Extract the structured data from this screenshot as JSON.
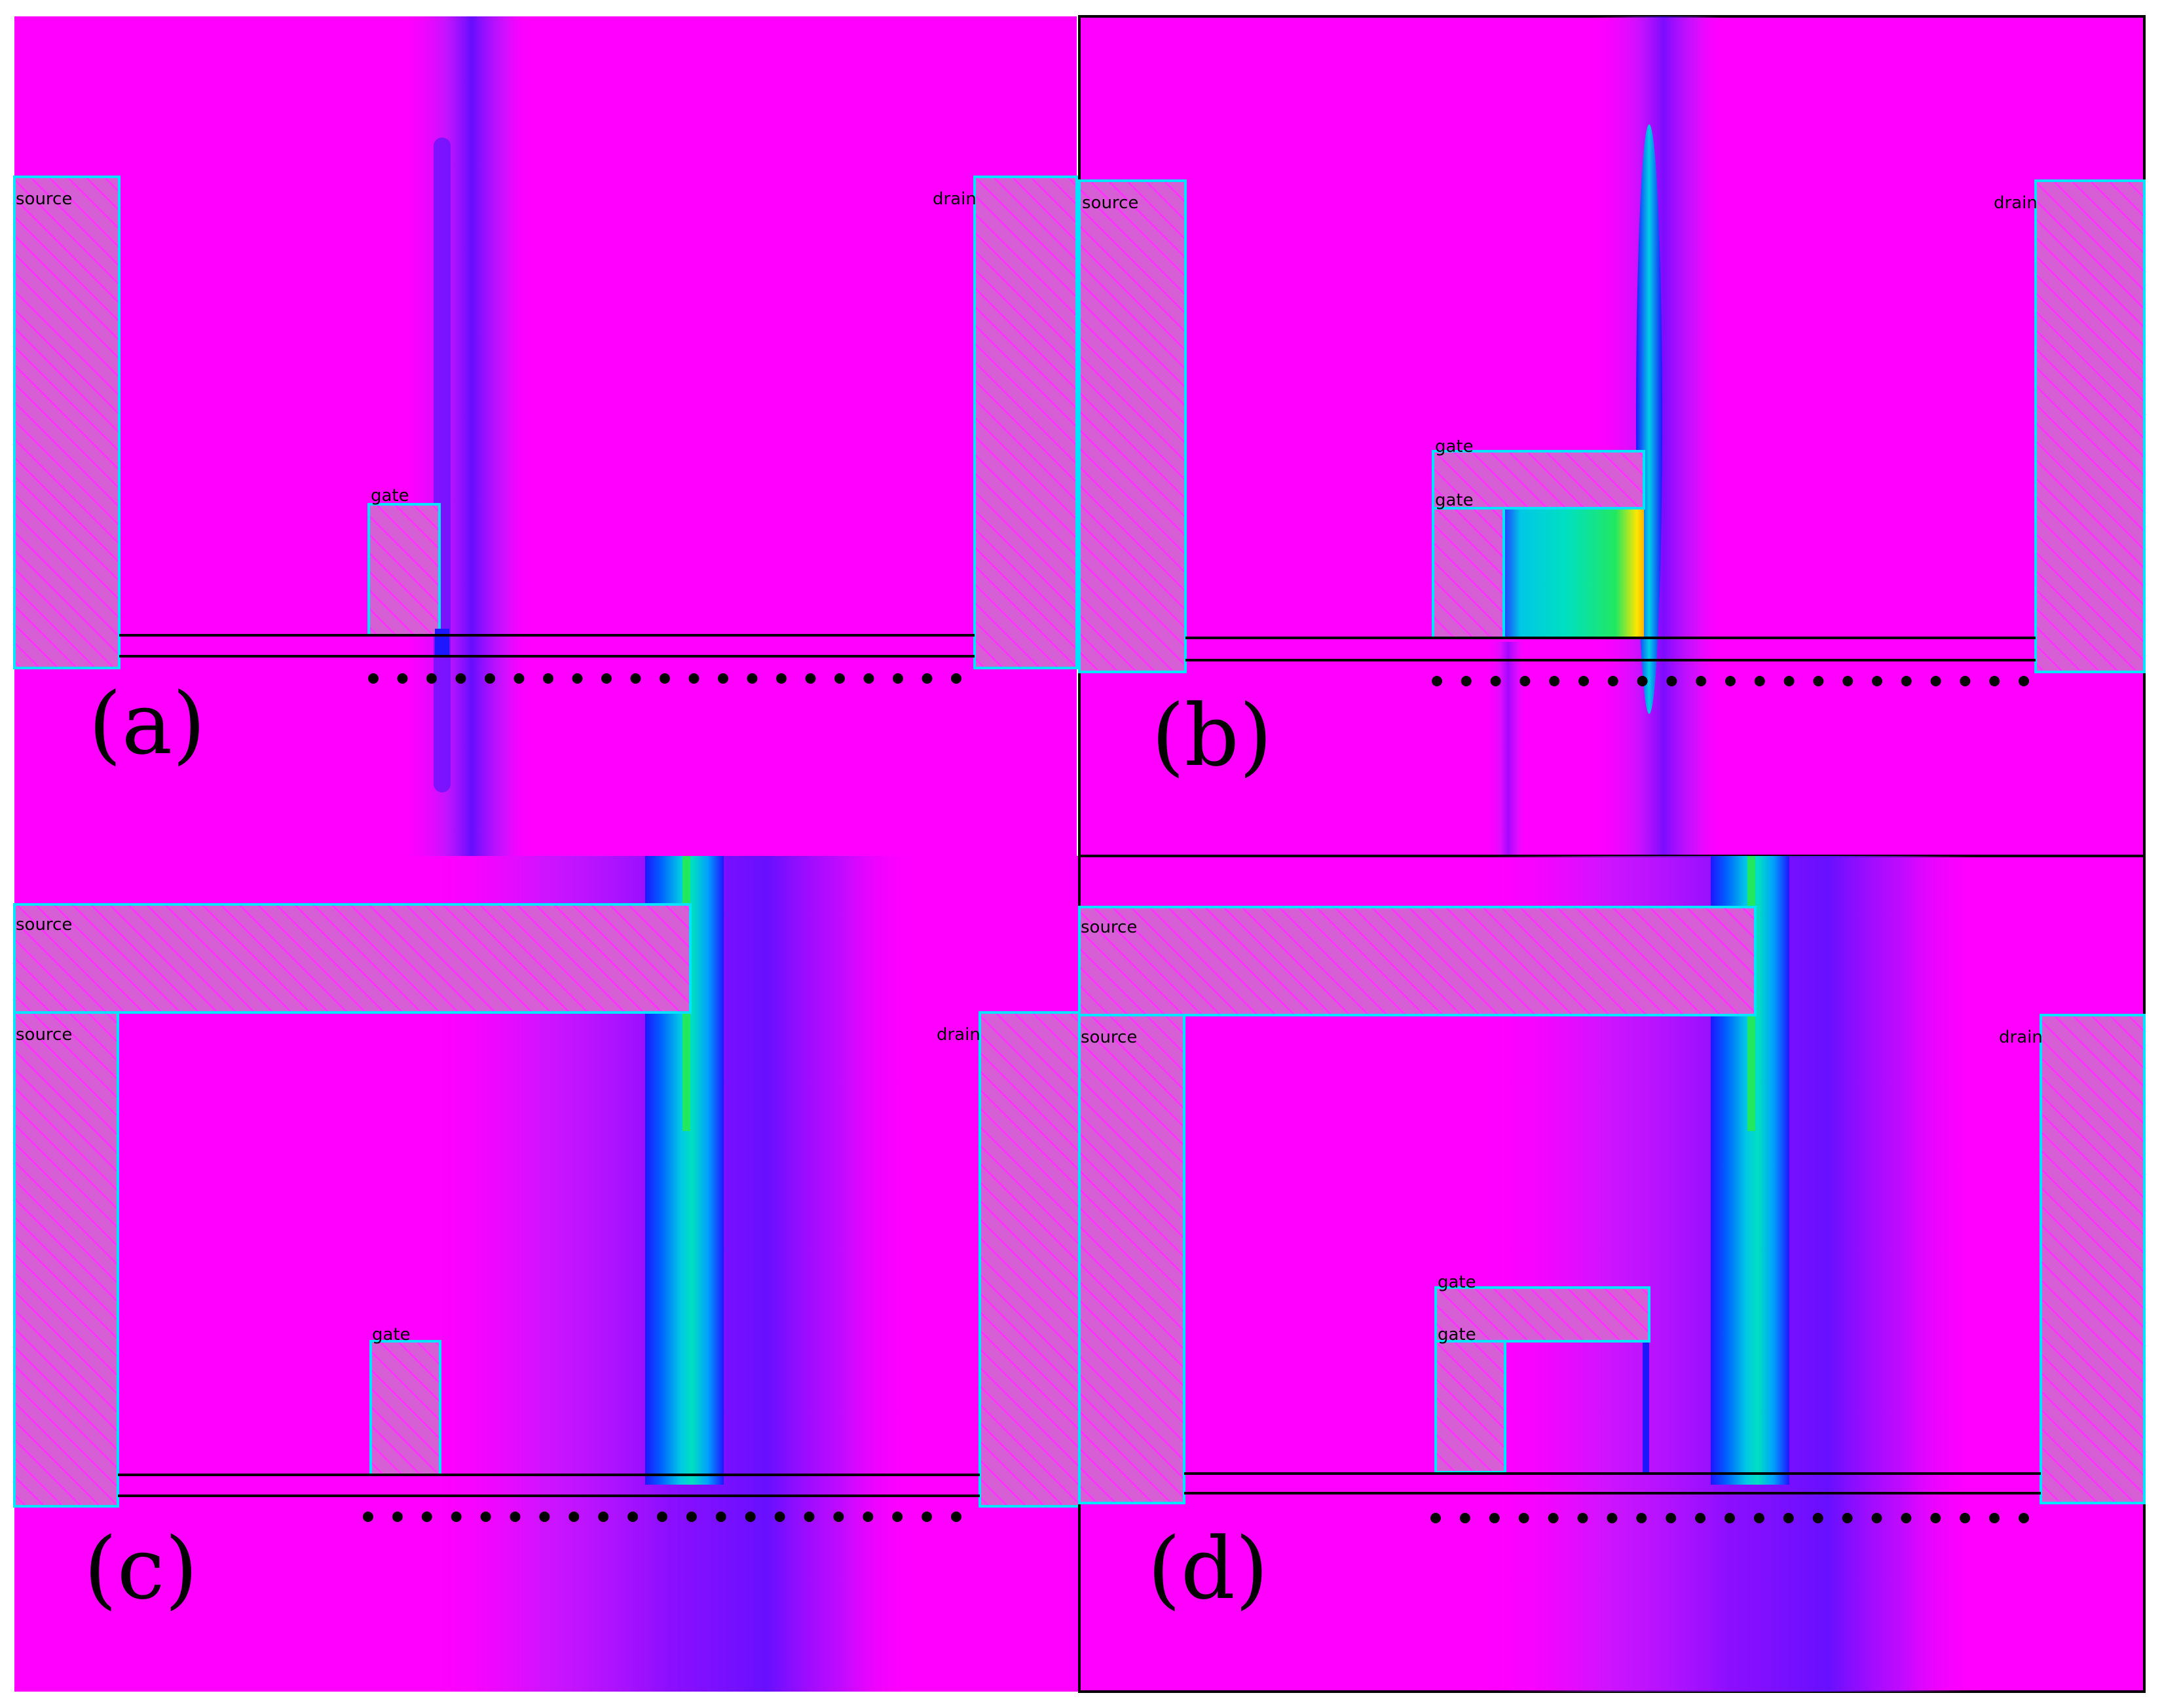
{
  "panels": [
    {
      "id": "a",
      "label": "(a)",
      "electrodes": [
        {
          "id": "source",
          "text": "source"
        },
        {
          "id": "drain",
          "text": "drain"
        },
        {
          "id": "gate",
          "text": "gate"
        }
      ]
    },
    {
      "id": "b",
      "label": "(b)",
      "electrodes": [
        {
          "id": "source",
          "text": "source"
        },
        {
          "id": "drain",
          "text": "drain"
        },
        {
          "id": "gate-top",
          "text": "gate"
        },
        {
          "id": "gate",
          "text": "gate"
        }
      ]
    },
    {
      "id": "c",
      "label": "(c)",
      "electrodes": [
        {
          "id": "source-top",
          "text": "source"
        },
        {
          "id": "source",
          "text": "source"
        },
        {
          "id": "drain",
          "text": "drain"
        },
        {
          "id": "gate",
          "text": "gate"
        }
      ]
    },
    {
      "id": "d",
      "label": "(d)",
      "electrodes": [
        {
          "id": "source-top",
          "text": "source"
        },
        {
          "id": "source",
          "text": "source"
        },
        {
          "id": "drain",
          "text": "drain"
        },
        {
          "id": "gate-top",
          "text": "gate"
        },
        {
          "id": "gate",
          "text": "gate"
        }
      ]
    }
  ],
  "colors": {
    "background": "#ff00ff",
    "electrode_fill": "#d65fd6",
    "electrode_outline": "#00e5ff",
    "field_violet": "#9a10ff",
    "field_blue": "#1e16ff",
    "field_cyan": "#00d9e6",
    "field_green": "#22e860",
    "field_yellow": "#ffe600",
    "channel_line": "#000000",
    "marker": "#000000"
  }
}
